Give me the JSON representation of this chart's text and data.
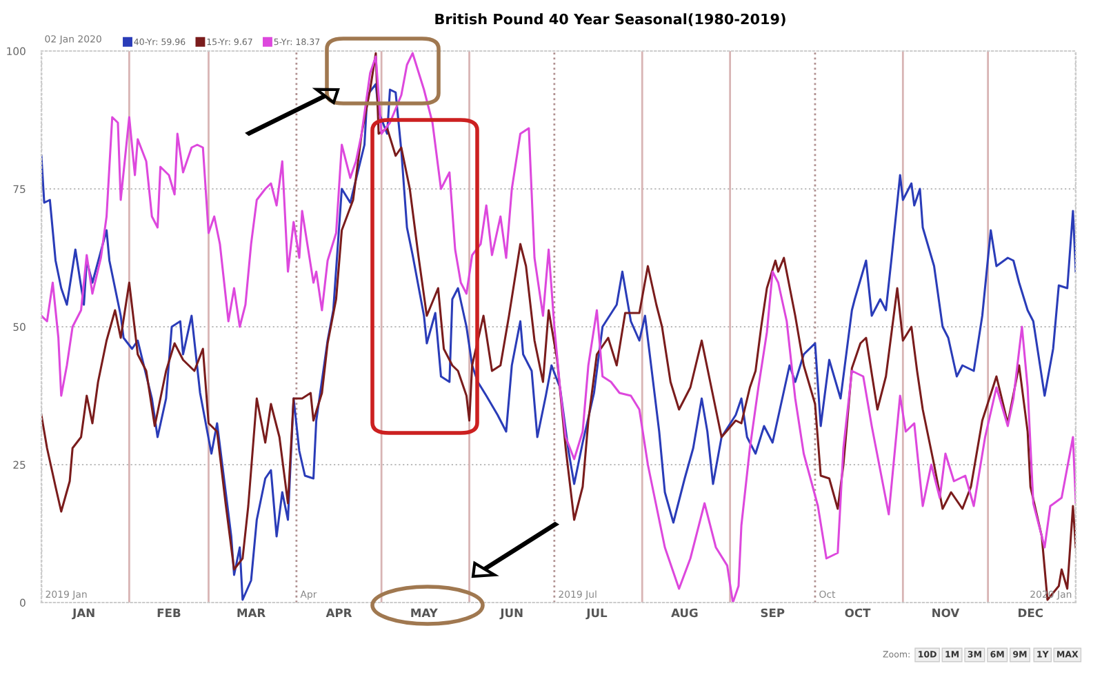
{
  "chart_data": {
    "type": "line",
    "title": "British Pound 40 Year Seasonal(1980-2019)",
    "legend_title": "02 Jan 2020",
    "legend": "top left",
    "grid": "y",
    "marker": "none",
    "line_style": "solid",
    "xlim": [
      "2019-01-01",
      "2020-01-01"
    ],
    "ylim": [
      0,
      100
    ],
    "yticks": [
      0,
      25,
      50,
      75,
      100
    ],
    "xticks": [
      {
        "value": "2019-01-16",
        "label": "JAN"
      },
      {
        "value": "2019-02-15",
        "label": "FEB"
      },
      {
        "value": "2019-03-16",
        "label": "MAR"
      },
      {
        "value": "2019-04-16",
        "label": "APR"
      },
      {
        "value": "2019-05-16",
        "label": "MAY"
      },
      {
        "value": "2019-06-16",
        "label": "JUN"
      },
      {
        "value": "2019-07-16",
        "label": "JUL"
      },
      {
        "value": "2019-08-16",
        "label": "AUG"
      },
      {
        "value": "2019-09-16",
        "label": "SEP"
      },
      {
        "value": "2019-10-16",
        "label": "OCT"
      },
      {
        "value": "2019-11-16",
        "label": "NOV"
      },
      {
        "value": "2019-12-16",
        "label": "DEC"
      }
    ],
    "ref_lines": [
      {
        "axis": "x",
        "value": "2019-01-01",
        "color": "#bbbbbb",
        "line_style": "dotted",
        "label": "2019 Jan"
      },
      {
        "axis": "x",
        "value": "2019-02-01",
        "color": "#d8b4b4",
        "line_style": "solid"
      },
      {
        "axis": "x",
        "value": "2019-03-01",
        "color": "#d8b4b4",
        "line_style": "solid"
      },
      {
        "axis": "x",
        "value": "2019-04-01",
        "color": "#b09090",
        "line_style": "dotted",
        "label": "Apr"
      },
      {
        "axis": "x",
        "value": "2019-05-01",
        "color": "#d8b4b4",
        "line_style": "solid"
      },
      {
        "axis": "x",
        "value": "2019-06-01",
        "color": "#d8b4b4",
        "line_style": "solid"
      },
      {
        "axis": "x",
        "value": "2019-07-01",
        "color": "#b09090",
        "line_style": "dotted",
        "label": "2019 Jul"
      },
      {
        "axis": "x",
        "value": "2019-08-01",
        "color": "#d8b4b4",
        "line_style": "solid"
      },
      {
        "axis": "x",
        "value": "2019-09-01",
        "color": "#d8b4b4",
        "line_style": "solid"
      },
      {
        "axis": "x",
        "value": "2019-10-01",
        "color": "#b09090",
        "line_style": "dotted",
        "label": "Oct"
      },
      {
        "axis": "x",
        "value": "2019-11-01",
        "color": "#d8b4b4",
        "line_style": "solid"
      },
      {
        "axis": "x",
        "value": "2019-12-01",
        "color": "#d8b4b4",
        "line_style": "solid"
      },
      {
        "axis": "x",
        "value": "2020-01-01",
        "color": "#bbbbbb",
        "line_style": "dotted",
        "label": "2020 Jan"
      }
    ],
    "annotations": [
      "Zoom:",
      "10D",
      "1M",
      "3M",
      "6M",
      "9M",
      "1Y",
      "MAX"
    ],
    "series": [
      {
        "name": "40-Yr: 59.96",
        "color": "#2a3cb8",
        "x": [
          "2019-01-01",
          "2019-01-02",
          "2019-01-04",
          "2019-01-06",
          "2019-01-08",
          "2019-01-10",
          "2019-01-13",
          "2019-01-16",
          "2019-01-17",
          "2019-01-19",
          "2019-01-24",
          "2019-01-25",
          "2019-01-29",
          "2019-01-30",
          "2019-02-02",
          "2019-02-04",
          "2019-02-09",
          "2019-02-11",
          "2019-02-14",
          "2019-02-16",
          "2019-02-19",
          "2019-02-20",
          "2019-02-23",
          "2019-02-26",
          "2019-03-02",
          "2019-03-04",
          "2019-03-09",
          "2019-03-10",
          "2019-03-12",
          "2019-03-13",
          "2019-03-16",
          "2019-03-18",
          "2019-03-21",
          "2019-03-23",
          "2019-03-25",
          "2019-03-27",
          "2019-03-29",
          "2019-03-31",
          "2019-04-02",
          "2019-04-04",
          "2019-04-07",
          "2019-04-08",
          "2019-04-12",
          "2019-04-14",
          "2019-04-17",
          "2019-04-20",
          "2019-04-25",
          "2019-04-26",
          "2019-04-29",
          "2019-04-30",
          "2019-05-03",
          "2019-05-04",
          "2019-05-06",
          "2019-05-08",
          "2019-05-10",
          "2019-05-12",
          "2019-05-16",
          "2019-05-17",
          "2019-05-20",
          "2019-05-22",
          "2019-05-25",
          "2019-05-26",
          "2019-05-28",
          "2019-05-31",
          "2019-06-02",
          "2019-06-04",
          "2019-06-07",
          "2019-06-11",
          "2019-06-14",
          "2019-06-16",
          "2019-06-19",
          "2019-06-20",
          "2019-06-23",
          "2019-06-25",
          "2019-06-28",
          "2019-06-30",
          "2019-07-03",
          "2019-07-06",
          "2019-07-08",
          "2019-07-11",
          "2019-07-15",
          "2019-07-18",
          "2019-07-23",
          "2019-07-25",
          "2019-07-28",
          "2019-07-31",
          "2019-08-02",
          "2019-08-07",
          "2019-08-09",
          "2019-08-12",
          "2019-08-16",
          "2019-08-19",
          "2019-08-22",
          "2019-08-24",
          "2019-08-26",
          "2019-08-29",
          "2019-09-03",
          "2019-09-05",
          "2019-09-07",
          "2019-09-10",
          "2019-09-13",
          "2019-09-16",
          "2019-09-19",
          "2019-09-22",
          "2019-09-24",
          "2019-09-27",
          "2019-10-01",
          "2019-10-03",
          "2019-10-06",
          "2019-10-10",
          "2019-10-14",
          "2019-10-15",
          "2019-10-19",
          "2019-10-21",
          "2019-10-24",
          "2019-10-26",
          "2019-10-28",
          "2019-10-31",
          "2019-11-01",
          "2019-11-04",
          "2019-11-05",
          "2019-11-07",
          "2019-11-08",
          "2019-11-12",
          "2019-11-15",
          "2019-11-17",
          "2019-11-20",
          "2019-11-22",
          "2019-11-26",
          "2019-11-29",
          "2019-12-02",
          "2019-12-04",
          "2019-12-08",
          "2019-12-10",
          "2019-12-12",
          "2019-12-15",
          "2019-12-17",
          "2019-12-21",
          "2019-12-24",
          "2019-12-26",
          "2019-12-29",
          "2019-12-31",
          "2020-01-01"
        ],
        "values": [
          81,
          72.5,
          73,
          62,
          57,
          54,
          64,
          54,
          62,
          58,
          67.5,
          62,
          52,
          48,
          46,
          47.5,
          37,
          30,
          37,
          50,
          51,
          45,
          52,
          38,
          27,
          32.5,
          12,
          5,
          10,
          0.5,
          4,
          15,
          22.5,
          24,
          12,
          20,
          15,
          37,
          27.5,
          23,
          22.5,
          33,
          47.5,
          53,
          75,
          72.5,
          83,
          92,
          94,
          89,
          85,
          93,
          92.5,
          82,
          68,
          63,
          52,
          47,
          52.5,
          41,
          40,
          55,
          57,
          50,
          43,
          40,
          37.5,
          34,
          31,
          43,
          51,
          45,
          42,
          30,
          37.5,
          43,
          39,
          27.5,
          21.5,
          29,
          38,
          50,
          54,
          60,
          51,
          47.5,
          52,
          31,
          20,
          14.5,
          22.5,
          28,
          37,
          31,
          21.5,
          30,
          34,
          37,
          30,
          27,
          32,
          29,
          36,
          43,
          40,
          45,
          47,
          32,
          44,
          37,
          53,
          55,
          62,
          52,
          55,
          53,
          62.5,
          77.5,
          73,
          76,
          72,
          75,
          68,
          61,
          50,
          48,
          41,
          43,
          42,
          52,
          67.5,
          61,
          62.5,
          62,
          58,
          53,
          51,
          37.5,
          46,
          57.5,
          57,
          71,
          60
        ]
      },
      {
        "name": "15-Yr: 9.67",
        "color": "#7a1c1c",
        "x": [
          "2019-01-01",
          "2019-01-03",
          "2019-01-06",
          "2019-01-08",
          "2019-01-11",
          "2019-01-12",
          "2019-01-15",
          "2019-01-17",
          "2019-01-19",
          "2019-01-21",
          "2019-01-24",
          "2019-01-27",
          "2019-01-29",
          "2019-02-01",
          "2019-02-04",
          "2019-02-07",
          "2019-02-10",
          "2019-02-14",
          "2019-02-17",
          "2019-02-20",
          "2019-02-24",
          "2019-02-27",
          "2019-03-01",
          "2019-03-04",
          "2019-03-07",
          "2019-03-10",
          "2019-03-13",
          "2019-03-15",
          "2019-03-18",
          "2019-03-21",
          "2019-03-23",
          "2019-03-26",
          "2019-03-29",
          "2019-03-31",
          "2019-04-03",
          "2019-04-06",
          "2019-04-07",
          "2019-04-10",
          "2019-04-12",
          "2019-04-15",
          "2019-04-17",
          "2019-04-21",
          "2019-04-24",
          "2019-04-27",
          "2019-04-29",
          "2019-04-30",
          "2019-05-03",
          "2019-05-06",
          "2019-05-08",
          "2019-05-11",
          "2019-05-14",
          "2019-05-17",
          "2019-05-21",
          "2019-05-23",
          "2019-05-26",
          "2019-05-28",
          "2019-05-31",
          "2019-06-01",
          "2019-06-02",
          "2019-06-06",
          "2019-06-09",
          "2019-06-12",
          "2019-06-15",
          "2019-06-19",
          "2019-06-21",
          "2019-06-24",
          "2019-06-27",
          "2019-06-29",
          "2019-07-02",
          "2019-07-05",
          "2019-07-08",
          "2019-07-11",
          "2019-07-13",
          "2019-07-16",
          "2019-07-20",
          "2019-07-23",
          "2019-07-26",
          "2019-07-31",
          "2019-08-03",
          "2019-08-06",
          "2019-08-08",
          "2019-08-11",
          "2019-08-14",
          "2019-08-18",
          "2019-08-22",
          "2019-08-26",
          "2019-08-29",
          "2019-09-03",
          "2019-09-05",
          "2019-09-08",
          "2019-09-10",
          "2019-09-12",
          "2019-09-14",
          "2019-09-17",
          "2019-09-18",
          "2019-09-20",
          "2019-09-24",
          "2019-09-27",
          "2019-10-01",
          "2019-10-03",
          "2019-10-06",
          "2019-10-09",
          "2019-10-11",
          "2019-10-14",
          "2019-10-17",
          "2019-10-19",
          "2019-10-23",
          "2019-10-26",
          "2019-10-30",
          "2019-11-01",
          "2019-11-04",
          "2019-11-06",
          "2019-11-08",
          "2019-11-12",
          "2019-11-15",
          "2019-11-18",
          "2019-11-22",
          "2019-11-25",
          "2019-11-29",
          "2019-12-04",
          "2019-12-08",
          "2019-12-12",
          "2019-12-15",
          "2019-12-16",
          "2019-12-20",
          "2019-12-22",
          "2019-12-26",
          "2019-12-27",
          "2019-12-29",
          "2019-12-31",
          "2020-01-01"
        ],
        "values": [
          34,
          28,
          21,
          16.5,
          22,
          28,
          30,
          37.5,
          32.5,
          40,
          47.5,
          53,
          48,
          58,
          45,
          42,
          32,
          42,
          47,
          44,
          42,
          46,
          32.5,
          31,
          18,
          6,
          8,
          17.5,
          37,
          29,
          36,
          30,
          18,
          37,
          37,
          38,
          33,
          38,
          47,
          55,
          67.5,
          73,
          85,
          93,
          99.6,
          85,
          86,
          81,
          82.5,
          75,
          63,
          52,
          57,
          46,
          43,
          42,
          37.5,
          33,
          43,
          52,
          42,
          43,
          52,
          65,
          61,
          47.5,
          40,
          53,
          44,
          28,
          15,
          21,
          33,
          45,
          48,
          43,
          52.5,
          52.5,
          61,
          54,
          50,
          40,
          35,
          39,
          47.5,
          37.5,
          30,
          33,
          32.5,
          39,
          42,
          50,
          57,
          62,
          60,
          62.5,
          52,
          43,
          36,
          23,
          22.5,
          17,
          25,
          42.5,
          47,
          48,
          35,
          41,
          57,
          47.5,
          50,
          42,
          35,
          25,
          17,
          20,
          17,
          21,
          33,
          41,
          32.5,
          43,
          31,
          21,
          12,
          0.5,
          3,
          6,
          2.5,
          17.5,
          10
        ]
      },
      {
        "name": "5-Yr: 18.37",
        "color": "#dd48dd",
        "x": [
          "2019-01-01",
          "2019-01-03",
          "2019-01-05",
          "2019-01-07",
          "2019-01-08",
          "2019-01-10",
          "2019-01-12",
          "2019-01-15",
          "2019-01-17",
          "2019-01-19",
          "2019-01-22",
          "2019-01-24",
          "2019-01-26",
          "2019-01-28",
          "2019-01-29",
          "2019-02-01",
          "2019-02-03",
          "2019-02-04",
          "2019-02-07",
          "2019-02-09",
          "2019-02-11",
          "2019-02-12",
          "2019-02-15",
          "2019-02-17",
          "2019-02-18",
          "2019-02-20",
          "2019-02-23",
          "2019-02-25",
          "2019-02-27",
          "2019-03-01",
          "2019-03-03",
          "2019-03-05",
          "2019-03-08",
          "2019-03-10",
          "2019-03-12",
          "2019-03-14",
          "2019-03-16",
          "2019-03-18",
          "2019-03-21",
          "2019-03-23",
          "2019-03-25",
          "2019-03-27",
          "2019-03-29",
          "2019-03-31",
          "2019-04-02",
          "2019-04-03",
          "2019-04-07",
          "2019-04-08",
          "2019-04-10",
          "2019-04-12",
          "2019-04-15",
          "2019-04-17",
          "2019-04-20",
          "2019-04-22",
          "2019-04-24",
          "2019-04-27",
          "2019-04-29",
          "2019-05-01",
          "2019-05-04",
          "2019-05-08",
          "2019-05-10",
          "2019-05-12",
          "2019-05-16",
          "2019-05-19",
          "2019-05-22",
          "2019-05-25",
          "2019-05-27",
          "2019-05-29",
          "2019-05-31",
          "2019-06-02",
          "2019-06-05",
          "2019-06-07",
          "2019-06-09",
          "2019-06-12",
          "2019-06-14",
          "2019-06-16",
          "2019-06-19",
          "2019-06-22",
          "2019-06-24",
          "2019-06-27",
          "2019-06-29",
          "2019-07-01",
          "2019-07-03",
          "2019-07-05",
          "2019-07-08",
          "2019-07-11",
          "2019-07-13",
          "2019-07-16",
          "2019-07-18",
          "2019-07-21",
          "2019-07-24",
          "2019-07-28",
          "2019-07-31",
          "2019-08-03",
          "2019-08-07",
          "2019-08-09",
          "2019-08-14",
          "2019-08-18",
          "2019-08-23",
          "2019-08-27",
          "2019-08-31",
          "2019-09-02",
          "2019-09-04",
          "2019-09-05",
          "2019-09-08",
          "2019-09-11",
          "2019-09-14",
          "2019-09-16",
          "2019-09-18",
          "2019-09-21",
          "2019-09-24",
          "2019-09-27",
          "2019-10-02",
          "2019-10-05",
          "2019-10-09",
          "2019-10-11",
          "2019-10-14",
          "2019-10-18",
          "2019-10-21",
          "2019-10-24",
          "2019-10-27",
          "2019-10-31",
          "2019-11-02",
          "2019-11-05",
          "2019-11-08",
          "2019-11-11",
          "2019-11-14",
          "2019-11-16",
          "2019-11-19",
          "2019-11-23",
          "2019-11-26",
          "2019-11-30",
          "2019-12-04",
          "2019-12-08",
          "2019-12-10",
          "2019-12-13",
          "2019-12-15",
          "2019-12-17",
          "2019-12-21",
          "2019-12-23",
          "2019-12-27",
          "2019-12-31",
          "2020-01-01"
        ],
        "values": [
          52,
          51,
          58,
          48,
          37.5,
          43,
          50,
          53,
          63,
          56,
          62.5,
          70,
          88,
          87,
          73,
          88,
          77.5,
          84,
          80,
          70,
          68,
          79,
          77.5,
          74,
          85,
          78,
          82.5,
          83,
          82.5,
          67,
          70,
          65,
          51,
          57,
          50,
          54,
          65,
          73,
          75,
          76,
          72,
          80,
          60,
          69,
          62.5,
          71,
          58,
          60,
          53,
          62,
          67,
          83,
          77,
          80,
          85,
          96,
          99,
          85,
          87,
          92,
          97.5,
          99.6,
          93,
          87,
          75,
          78,
          64,
          58,
          56,
          63,
          65,
          72,
          63,
          70,
          62.5,
          75,
          85,
          86,
          62.5,
          52,
          64,
          50,
          39,
          30,
          26,
          31,
          43,
          53,
          41,
          40,
          38,
          37.5,
          35,
          25,
          15,
          10,
          2.5,
          8,
          18,
          10,
          6.7,
          0,
          3,
          14,
          28,
          39,
          49,
          60,
          58,
          51,
          37,
          27,
          17.5,
          8,
          9,
          28,
          42,
          41,
          32,
          24,
          16,
          37.5,
          31,
          32.5,
          17.5,
          25,
          19,
          27,
          22,
          23,
          17.5,
          30,
          39,
          32,
          37,
          50,
          39,
          18,
          10,
          17.5,
          19,
          30,
          18
        ]
      }
    ]
  }
}
